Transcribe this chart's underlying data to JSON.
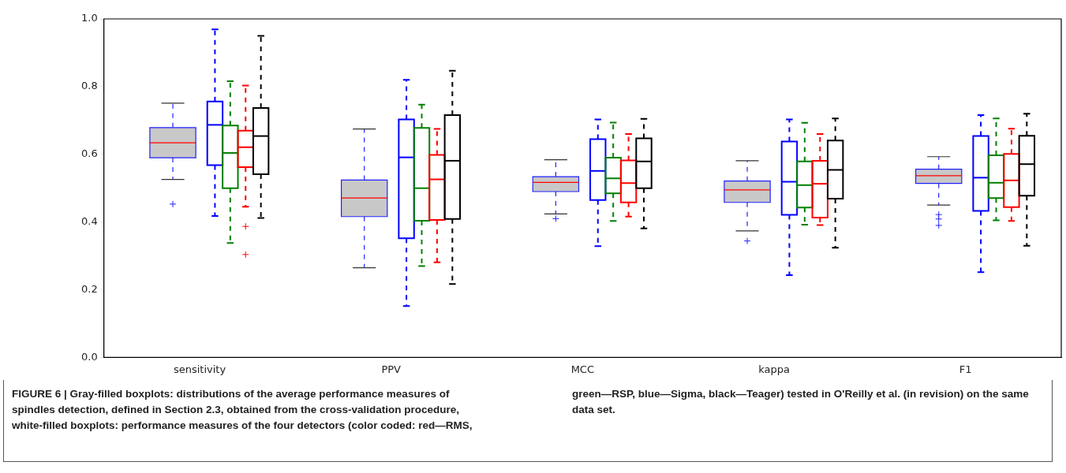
{
  "chart_data": {
    "type": "box",
    "categories": [
      "sensitivity",
      "PPV",
      "MCC",
      "kappa",
      "F1"
    ],
    "ylim": [
      0,
      1
    ],
    "yticks": [
      {
        "value": 0,
        "label": "0.0"
      },
      {
        "value": 0.2,
        "label": "0.2"
      },
      {
        "value": 0.4,
        "label": "0.4"
      },
      {
        "value": 0.6,
        "label": "0.6"
      },
      {
        "value": 0.8,
        "label": "0.8"
      },
      {
        "value": 1,
        "label": "1.0"
      }
    ],
    "grid": false,
    "legend": false,
    "series": [
      {
        "color": "#c8c8c8",
        "boxes": [
          {
            "low": 0.526,
            "q1": 0.59,
            "median": 0.634,
            "q3": 0.679,
            "high": 0.751,
            "outliers": [
              0.453
            ]
          },
          {
            "low": 0.265,
            "q1": 0.416,
            "median": 0.471,
            "q3": 0.524,
            "high": 0.675
          },
          {
            "low": 0.424,
            "q1": 0.49,
            "median": 0.517,
            "q3": 0.534,
            "high": 0.584,
            "outliers": [
              0.41
            ]
          },
          {
            "low": 0.374,
            "q1": 0.458,
            "median": 0.495,
            "q3": 0.521,
            "high": 0.581,
            "outliers": [
              0.344
            ]
          },
          {
            "low": 0.45,
            "q1": 0.514,
            "median": 0.537,
            "q3": 0.556,
            "high": 0.593,
            "outliers": [
              0.422,
              0.409,
              0.39
            ]
          }
        ]
      },
      {
        "color": "#0000ff",
        "boxes": [
          {
            "low": 0.418,
            "q1": 0.568,
            "median": 0.687,
            "q3": 0.756,
            "high": 0.969
          },
          {
            "low": 0.152,
            "q1": 0.352,
            "median": 0.591,
            "q3": 0.703,
            "high": 0.82
          },
          {
            "low": 0.329,
            "q1": 0.465,
            "median": 0.551,
            "q3": 0.645,
            "high": 0.703
          },
          {
            "low": 0.243,
            "q1": 0.421,
            "median": 0.519,
            "q3": 0.638,
            "high": 0.703
          },
          {
            "low": 0.252,
            "q1": 0.433,
            "median": 0.531,
            "q3": 0.654,
            "high": 0.716
          }
        ]
      },
      {
        "color": "#008000",
        "boxes": [
          {
            "low": 0.338,
            "q1": 0.5,
            "median": 0.604,
            "q3": 0.685,
            "high": 0.816
          },
          {
            "low": 0.27,
            "q1": 0.404,
            "median": 0.5,
            "q3": 0.678,
            "high": 0.747
          },
          {
            "low": 0.403,
            "q1": 0.485,
            "median": 0.529,
            "q3": 0.59,
            "high": 0.694
          },
          {
            "low": 0.392,
            "q1": 0.443,
            "median": 0.509,
            "q3": 0.579,
            "high": 0.693
          },
          {
            "low": 0.405,
            "q1": 0.471,
            "median": 0.516,
            "q3": 0.597,
            "high": 0.706
          }
        ]
      },
      {
        "color": "#ff0000",
        "boxes": [
          {
            "low": 0.445,
            "q1": 0.562,
            "median": 0.621,
            "q3": 0.67,
            "high": 0.803,
            "outliers": [
              0.387,
              0.304
            ]
          },
          {
            "low": 0.281,
            "q1": 0.406,
            "median": 0.526,
            "q3": 0.598,
            "high": 0.675
          },
          {
            "low": 0.416,
            "q1": 0.458,
            "median": 0.515,
            "q3": 0.582,
            "high": 0.66
          },
          {
            "low": 0.391,
            "q1": 0.413,
            "median": 0.513,
            "q3": 0.581,
            "high": 0.66
          },
          {
            "low": 0.403,
            "q1": 0.444,
            "median": 0.523,
            "q3": 0.601,
            "high": 0.676
          }
        ]
      },
      {
        "color": "#000000",
        "boxes": [
          {
            "low": 0.412,
            "q1": 0.541,
            "median": 0.654,
            "q3": 0.737,
            "high": 0.95
          },
          {
            "low": 0.217,
            "q1": 0.409,
            "median": 0.581,
            "q3": 0.716,
            "high": 0.847
          },
          {
            "low": 0.381,
            "q1": 0.5,
            "median": 0.579,
            "q3": 0.647,
            "high": 0.705
          },
          {
            "low": 0.324,
            "q1": 0.469,
            "median": 0.554,
            "q3": 0.641,
            "high": 0.706
          },
          {
            "low": 0.33,
            "q1": 0.478,
            "median": 0.571,
            "q3": 0.655,
            "high": 0.72
          }
        ]
      }
    ],
    "annotations": [
      "FIGURE 6 | Gray-filled boxplots: distributions of the average performance measures of spindles detection, defined in Section 2.3, obtained from the cross-validation procedure, white-filled boxplots: performance measures of the four detectors (color coded: red—RMS, green—RSP, blue—Sigma, black—Teager) tested in O'Reilly et al. (in revision) on the same data set."
    ]
  }
}
